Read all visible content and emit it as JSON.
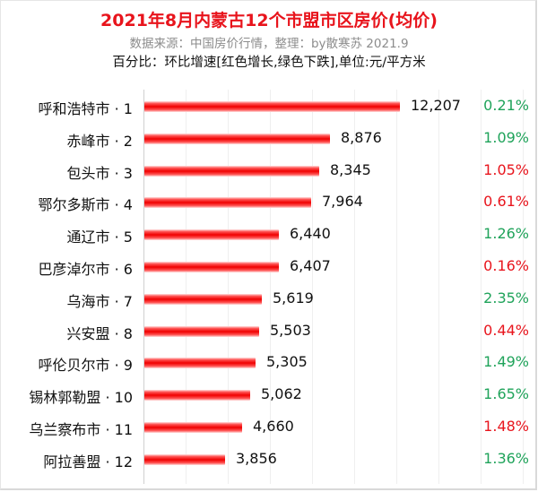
{
  "header": {
    "title": "2021年8月内蒙古12个市盟市区房价(均价)",
    "subtitle": "数据来源：中国房价行情，整理：by散寒苏 2021.9",
    "note": "百分比：环比增速[红色增长,绿色下跌],单位:元/平方米"
  },
  "colors": {
    "bar": "#f00000",
    "increase": "#e8141c",
    "decrease": "#1fa35a",
    "title": "#e8141c",
    "grid": "#efefef"
  },
  "chart_data": {
    "type": "bar",
    "orientation": "horizontal",
    "title": "2021年8月内蒙古12个市盟市区房价(均价)",
    "subtitle": "数据来源：中国房价行情，整理：by散寒苏 2021.9",
    "annotation": "百分比：环比增速[红色增长,绿色下跌],单位:元/平方米",
    "xlabel": "",
    "ylabel": "",
    "unit": "元/平方米",
    "xlim": [
      0,
      18000
    ],
    "grid": true,
    "legend": null,
    "categories": [
      "呼和浩特市 · 1",
      "赤峰市 · 2",
      "包头市 · 3",
      "鄂尔多斯市 · 4",
      "通辽市 · 5",
      "巴彦淖尔市 · 6",
      "乌海市 · 7",
      "兴安盟 · 8",
      "呼伦贝尔市 · 9",
      "锡林郭勒盟 · 10",
      "乌兰察布市 · 11",
      "阿拉善盟 · 12"
    ],
    "series": [
      {
        "name": "均价",
        "values": [
          12207,
          8876,
          8345,
          7964,
          6440,
          6407,
          5619,
          5503,
          5305,
          5062,
          4660,
          3856
        ]
      },
      {
        "name": "环比增速(%)",
        "values": [
          0.21,
          1.09,
          1.05,
          0.61,
          1.26,
          0.16,
          2.35,
          0.44,
          1.49,
          1.65,
          1.48,
          1.36
        ],
        "direction": [
          "down",
          "down",
          "up",
          "up",
          "down",
          "up",
          "down",
          "up",
          "down",
          "down",
          "up",
          "down"
        ]
      }
    ]
  },
  "rows": [
    {
      "label": "呼和浩特市 · 1",
      "value": 12207,
      "value_text": "12,207",
      "pct": "0.21%",
      "dir": "down"
    },
    {
      "label": "赤峰市 · 2",
      "value": 8876,
      "value_text": "8,876",
      "pct": "1.09%",
      "dir": "down"
    },
    {
      "label": "包头市 · 3",
      "value": 8345,
      "value_text": "8,345",
      "pct": "1.05%",
      "dir": "up"
    },
    {
      "label": "鄂尔多斯市 · 4",
      "value": 7964,
      "value_text": "7,964",
      "pct": "0.61%",
      "dir": "up"
    },
    {
      "label": "通辽市 · 5",
      "value": 6440,
      "value_text": "6,440",
      "pct": "1.26%",
      "dir": "down"
    },
    {
      "label": "巴彦淖尔市 · 6",
      "value": 6407,
      "value_text": "6,407",
      "pct": "0.16%",
      "dir": "up"
    },
    {
      "label": "乌海市 · 7",
      "value": 5619,
      "value_text": "5,619",
      "pct": "2.35%",
      "dir": "down"
    },
    {
      "label": "兴安盟 · 8",
      "value": 5503,
      "value_text": "5,503",
      "pct": "0.44%",
      "dir": "up"
    },
    {
      "label": "呼伦贝尔市 · 9",
      "value": 5305,
      "value_text": "5,305",
      "pct": "1.49%",
      "dir": "down"
    },
    {
      "label": "锡林郭勒盟 · 10",
      "value": 5062,
      "value_text": "5,062",
      "pct": "1.65%",
      "dir": "down"
    },
    {
      "label": "乌兰察布市 · 11",
      "value": 4660,
      "value_text": "4,660",
      "pct": "1.48%",
      "dir": "up"
    },
    {
      "label": "阿拉善盟 · 12",
      "value": 3856,
      "value_text": "3,856",
      "pct": "1.36%",
      "dir": "down"
    }
  ]
}
